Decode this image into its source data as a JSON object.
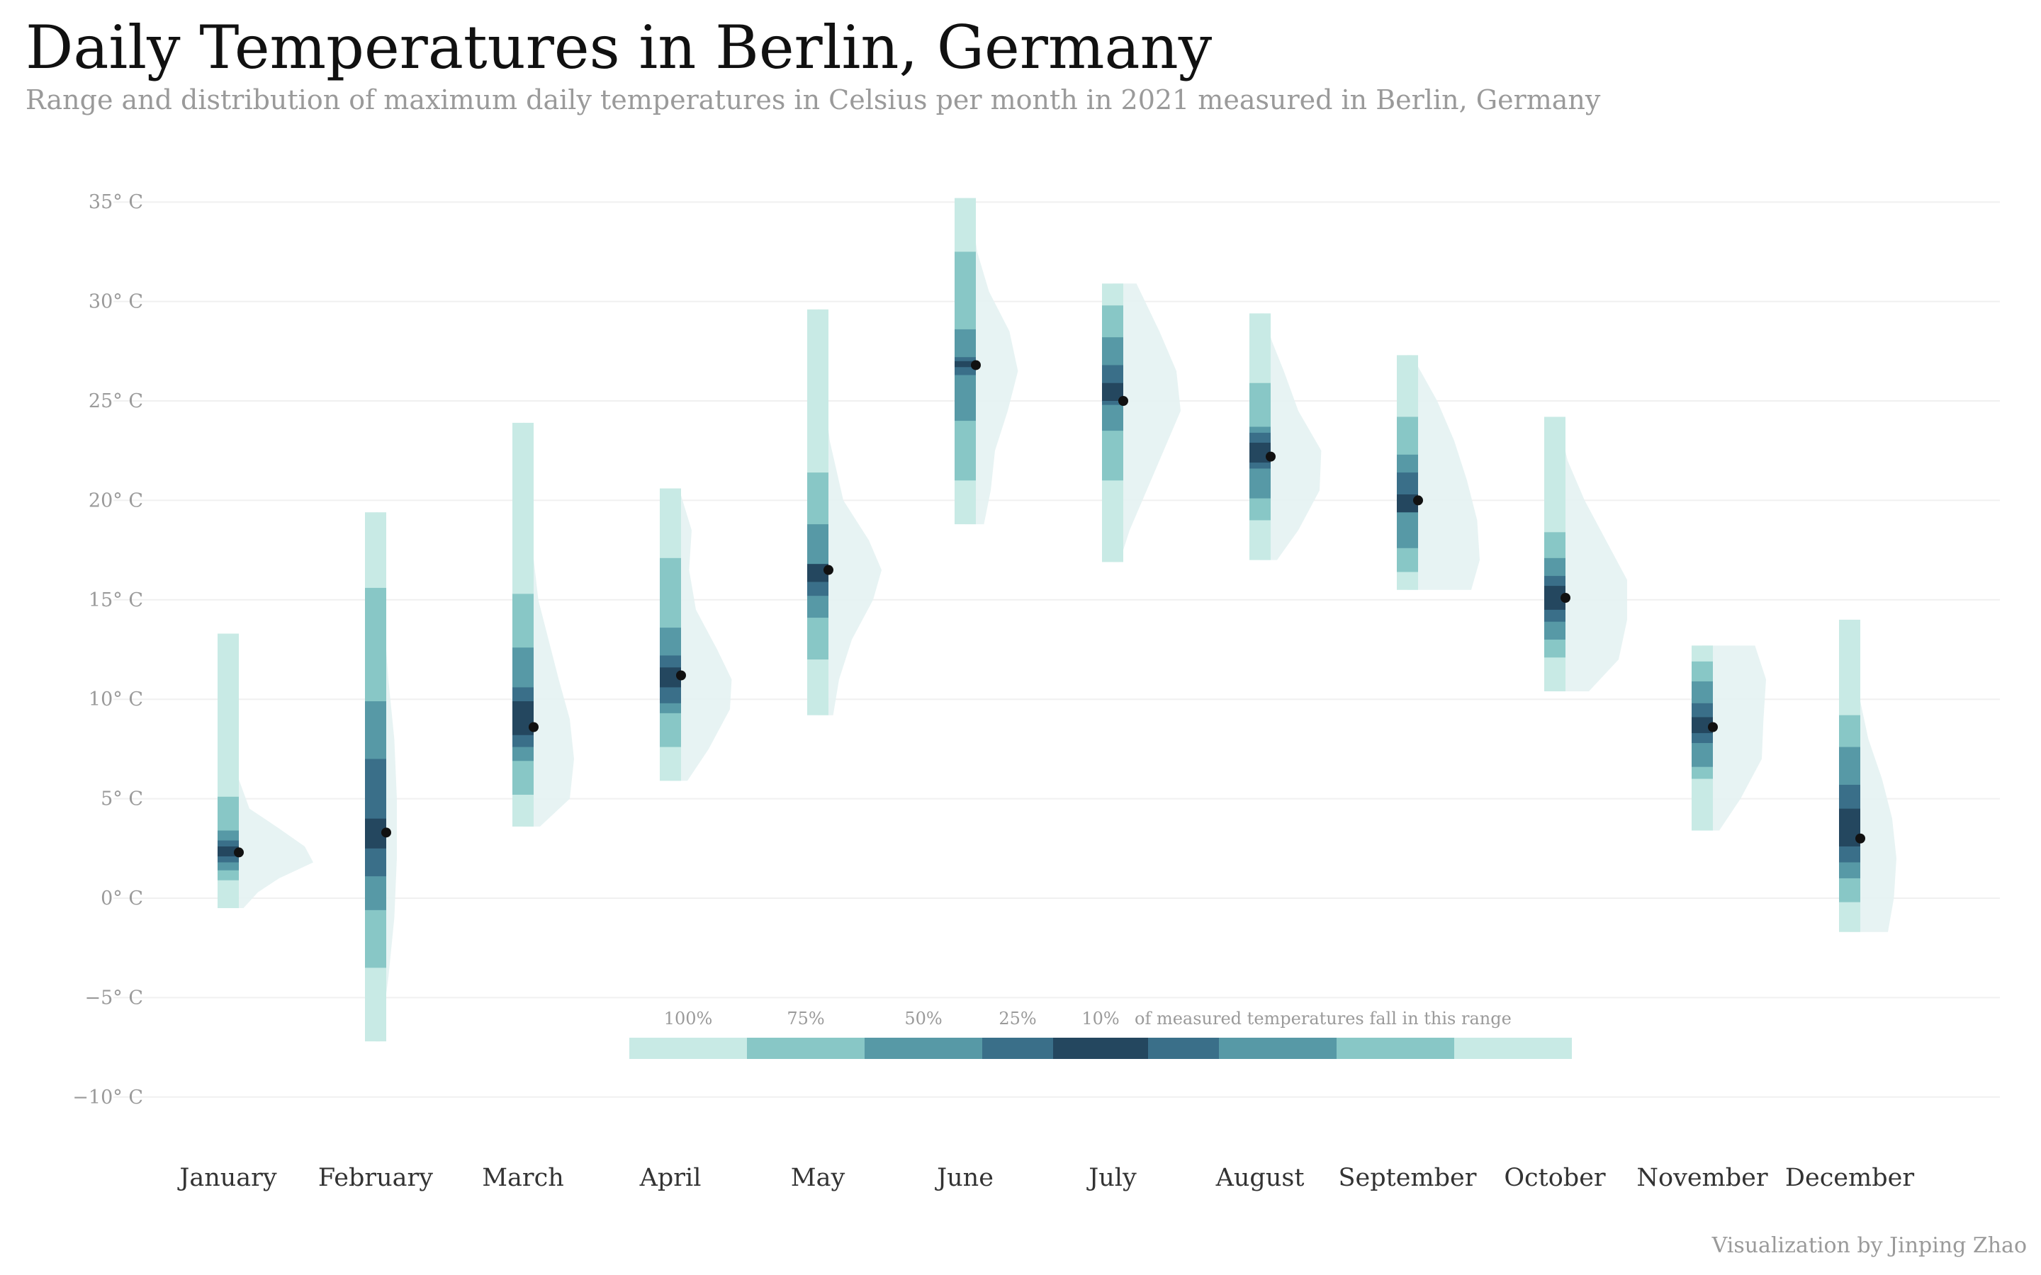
{
  "chart_data": {
    "type": "interval-density",
    "title": "Daily Temperatures in Berlin, Germany",
    "subtitle": "Range and distribution of maximum daily temperatures in Celsius per month in 2021 measured in Berlin, Germany",
    "caption": "Visualization by Jinping Zhao",
    "y_unit_suffix": "° C",
    "ylim": [
      -10,
      35
    ],
    "yticks": [
      -10,
      -5,
      0,
      5,
      10,
      15,
      20,
      25,
      30,
      35
    ],
    "grid": true,
    "colors": {
      "100": "#c8eae5",
      "75": "#88c7c6",
      "50": "#5799a6",
      "25": "#3a6f89",
      "10": "#24475f",
      "density": "#e4f2f2",
      "median": "#111111"
    },
    "legend": {
      "levels": [
        "100%",
        "75%",
        "50%",
        "25%",
        "10%"
      ],
      "caption": "of measured temperatures fall in this range"
    },
    "months": [
      {
        "name": "January",
        "min": -0.5,
        "max": 13.3,
        "median": 2.3,
        "intervals": {
          "75": [
            0.9,
            5.1
          ],
          "50": [
            1.4,
            3.4
          ],
          "25": [
            1.8,
            2.9
          ],
          "10": [
            2.1,
            2.6
          ]
        },
        "density": [
          [
            -0.5,
            0.18
          ],
          [
            0.3,
            0.35
          ],
          [
            1.0,
            0.6
          ],
          [
            1.8,
            1.0
          ],
          [
            2.6,
            0.9
          ],
          [
            3.5,
            0.6
          ],
          [
            4.5,
            0.25
          ],
          [
            6.5,
            0.08
          ],
          [
            9,
            0.04
          ],
          [
            11,
            0.05
          ],
          [
            13.3,
            0.02
          ]
        ]
      },
      {
        "name": "February",
        "min": -7.2,
        "max": 19.4,
        "median": 3.3,
        "intervals": {
          "75": [
            -3.5,
            15.6
          ],
          "50": [
            -0.6,
            9.9
          ],
          "25": [
            1.1,
            7.0
          ],
          "10": [
            2.5,
            4.0
          ]
        },
        "density": [
          [
            -7.2,
            0.05
          ],
          [
            -4,
            0.15
          ],
          [
            -1,
            0.22
          ],
          [
            2,
            0.25
          ],
          [
            5,
            0.25
          ],
          [
            8,
            0.22
          ],
          [
            11,
            0.15
          ],
          [
            14,
            0.1
          ],
          [
            17,
            0.05
          ],
          [
            19.4,
            0.03
          ]
        ]
      },
      {
        "name": "March",
        "min": 3.6,
        "max": 23.9,
        "median": 8.6,
        "intervals": {
          "75": [
            5.2,
            15.3
          ],
          "50": [
            6.9,
            12.6
          ],
          "25": [
            7.6,
            10.6
          ],
          "10": [
            8.2,
            9.9
          ]
        },
        "density": [
          [
            3.6,
            0.2
          ],
          [
            5,
            0.55
          ],
          [
            7,
            0.6
          ],
          [
            9,
            0.55
          ],
          [
            11,
            0.42
          ],
          [
            13,
            0.3
          ],
          [
            15,
            0.18
          ],
          [
            18,
            0.1
          ],
          [
            21,
            0.05
          ],
          [
            23.9,
            0.02
          ]
        ]
      },
      {
        "name": "April",
        "min": 5.9,
        "max": 20.6,
        "median": 11.2,
        "intervals": {
          "75": [
            7.6,
            17.1
          ],
          "50": [
            9.3,
            13.6
          ],
          "25": [
            9.8,
            12.2
          ],
          "10": [
            10.6,
            11.6
          ]
        },
        "density": [
          [
            5.9,
            0.2
          ],
          [
            7.5,
            0.45
          ],
          [
            9.5,
            0.7
          ],
          [
            11,
            0.72
          ],
          [
            12.5,
            0.55
          ],
          [
            14.5,
            0.3
          ],
          [
            16.5,
            0.22
          ],
          [
            18.5,
            0.25
          ],
          [
            20.6,
            0.1
          ]
        ]
      },
      {
        "name": "May",
        "min": 9.2,
        "max": 29.6,
        "median": 16.5,
        "intervals": {
          "75": [
            12.0,
            21.4
          ],
          "50": [
            14.1,
            18.8
          ],
          "25": [
            15.2,
            16.8
          ],
          "10": [
            15.9,
            16.8
          ]
        },
        "density": [
          [
            9.2,
            0.18
          ],
          [
            11,
            0.25
          ],
          [
            13,
            0.4
          ],
          [
            15,
            0.65
          ],
          [
            16.5,
            0.75
          ],
          [
            18,
            0.6
          ],
          [
            20,
            0.3
          ],
          [
            23,
            0.14
          ],
          [
            26,
            0.06
          ],
          [
            29.6,
            0.02
          ]
        ]
      },
      {
        "name": "June",
        "min": 18.8,
        "max": 35.2,
        "median": 26.8,
        "intervals": {
          "75": [
            21.0,
            32.5
          ],
          "50": [
            24.0,
            28.6
          ],
          "25": [
            26.3,
            27.2
          ],
          "10": [
            26.7,
            27.0
          ]
        },
        "density": [
          [
            18.8,
            0.22
          ],
          [
            20.5,
            0.3
          ],
          [
            22.5,
            0.35
          ],
          [
            24.5,
            0.5
          ],
          [
            26.5,
            0.62
          ],
          [
            28.5,
            0.52
          ],
          [
            30.5,
            0.28
          ],
          [
            32.5,
            0.14
          ],
          [
            35.2,
            0.05
          ]
        ]
      },
      {
        "name": "July",
        "min": 16.9,
        "max": 30.9,
        "median": 25.0,
        "intervals": {
          "75": [
            21.0,
            29.8
          ],
          "50": [
            23.5,
            28.2
          ],
          "25": [
            24.8,
            26.8
          ],
          "10": [
            25.0,
            25.9
          ]
        },
        "density": [
          [
            16.9,
            0.08
          ],
          [
            18.5,
            0.2
          ],
          [
            20.5,
            0.4
          ],
          [
            22.5,
            0.6
          ],
          [
            24.5,
            0.8
          ],
          [
            26.5,
            0.75
          ],
          [
            28.5,
            0.55
          ],
          [
            30.9,
            0.28
          ]
        ]
      },
      {
        "name": "August",
        "min": 17.0,
        "max": 29.4,
        "median": 22.2,
        "intervals": {
          "75": [
            19.0,
            25.9
          ],
          "50": [
            20.1,
            23.7
          ],
          "25": [
            21.6,
            23.4
          ],
          "10": [
            21.9,
            22.9
          ]
        },
        "density": [
          [
            17.0,
            0.2
          ],
          [
            18.5,
            0.45
          ],
          [
            20.5,
            0.7
          ],
          [
            22.5,
            0.72
          ],
          [
            24.5,
            0.45
          ],
          [
            26.5,
            0.28
          ],
          [
            28,
            0.14
          ],
          [
            29.4,
            0.04
          ]
        ]
      },
      {
        "name": "September",
        "min": 15.5,
        "max": 27.3,
        "median": 20.0,
        "intervals": {
          "75": [
            16.4,
            24.2
          ],
          "50": [
            17.6,
            22.3
          ],
          "25": [
            19.4,
            21.4
          ],
          "10": [
            19.4,
            20.3
          ]
        },
        "density": [
          [
            15.5,
            0.75
          ],
          [
            17,
            0.85
          ],
          [
            19,
            0.82
          ],
          [
            21,
            0.7
          ],
          [
            23,
            0.55
          ],
          [
            25,
            0.35
          ],
          [
            27.3,
            0.05
          ]
        ]
      },
      {
        "name": "October",
        "min": 10.4,
        "max": 24.2,
        "median": 15.1,
        "intervals": {
          "75": [
            12.1,
            18.4
          ],
          "50": [
            13.0,
            17.1
          ],
          "25": [
            13.9,
            16.2
          ],
          "10": [
            14.5,
            15.7
          ]
        },
        "density": [
          [
            10.4,
            0.4
          ],
          [
            12,
            0.75
          ],
          [
            14,
            0.85
          ],
          [
            16,
            0.85
          ],
          [
            18,
            0.6
          ],
          [
            20,
            0.35
          ],
          [
            22,
            0.15
          ],
          [
            24.2,
            0.03
          ]
        ]
      },
      {
        "name": "November",
        "min": 3.4,
        "max": 12.7,
        "median": 8.6,
        "intervals": {
          "75": [
            6.0,
            11.9
          ],
          "50": [
            6.6,
            10.9
          ],
          "25": [
            7.8,
            9.8
          ],
          "10": [
            8.3,
            9.1
          ]
        },
        "density": [
          [
            3.4,
            0.2
          ],
          [
            5,
            0.45
          ],
          [
            7,
            0.7
          ],
          [
            9,
            0.72
          ],
          [
            11,
            0.75
          ],
          [
            12.7,
            0.62
          ]
        ]
      },
      {
        "name": "December",
        "min": -1.7,
        "max": 14.0,
        "median": 3.0,
        "intervals": {
          "75": [
            -0.2,
            9.2
          ],
          "50": [
            1.0,
            7.6
          ],
          "25": [
            1.8,
            5.7
          ],
          "10": [
            2.6,
            4.5
          ]
        },
        "density": [
          [
            -1.7,
            0.45
          ],
          [
            0,
            0.52
          ],
          [
            2,
            0.55
          ],
          [
            4,
            0.5
          ],
          [
            6,
            0.38
          ],
          [
            8,
            0.22
          ],
          [
            10,
            0.12
          ],
          [
            12,
            0.05
          ],
          [
            14,
            0.01
          ]
        ]
      }
    ]
  }
}
